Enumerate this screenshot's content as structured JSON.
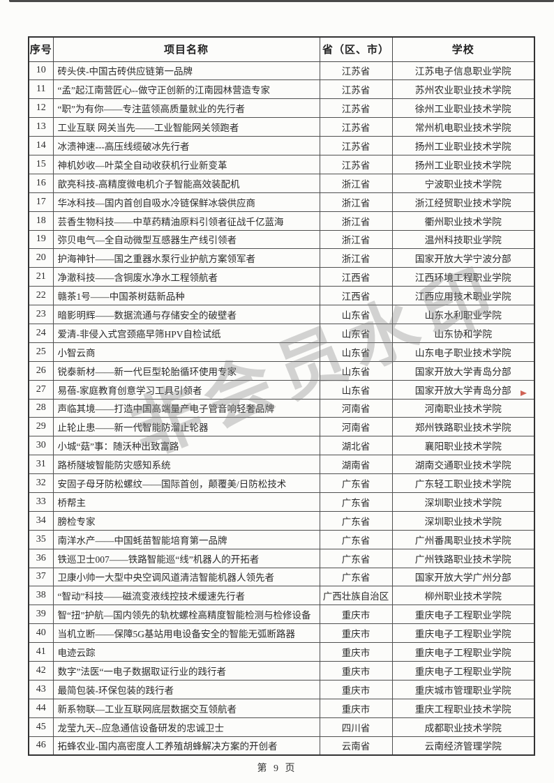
{
  "page": {
    "watermark": "非会员水印",
    "footer": "第 9 页"
  },
  "table": {
    "headers": [
      "序号",
      "项目名称",
      "省（区、市）",
      "学校"
    ],
    "rows": [
      {
        "no": "10",
        "project": "砖头侠-中国古砖供应链第一品牌",
        "province": "江苏省",
        "school": "江苏电子信息职业学院"
      },
      {
        "no": "11",
        "project": "“孟”起江南营匠心--做守正创新的江南园林营造专家",
        "province": "江苏省",
        "school": "苏州农业职业技术学院"
      },
      {
        "no": "12",
        "project": "“职”为有你——专注蓝领高质量就业的先行者",
        "province": "江苏省",
        "school": "徐州工业职业技术学院"
      },
      {
        "no": "13",
        "project": "工业互联 网关当先——工业智能网关领跑者",
        "province": "江苏省",
        "school": "常州机电职业技术学院"
      },
      {
        "no": "14",
        "project": "冰溃神速---高压线缆破冰先行者",
        "province": "江苏省",
        "school": "扬州工业职业技术学院"
      },
      {
        "no": "15",
        "project": "神机妙收—叶菜全自动收获机行业新变革",
        "province": "江苏省",
        "school": "扬州工业职业技术学院"
      },
      {
        "no": "16",
        "project": "歆亮科技-高精度微电机介子智能高效装配机",
        "province": "浙江省",
        "school": "宁波职业技术学院"
      },
      {
        "no": "17",
        "project": "华冰科技—国内首创自吸水冷链保鲜冰袋供应商",
        "province": "浙江省",
        "school": "浙江经贸职业技术学院"
      },
      {
        "no": "18",
        "project": "芸香生物科技——中草药精油原料引领者征战千亿蓝海",
        "province": "浙江省",
        "school": "衢州职业技术学院"
      },
      {
        "no": "19",
        "project": "弥贝电气—全自动微型互感器生产线引领者",
        "province": "浙江省",
        "school": "温州科技职业学院"
      },
      {
        "no": "20",
        "project": "护海神针——国之重器水泵行业护航方案领军者",
        "province": "浙江省",
        "school": "国家开放大学宁波分部"
      },
      {
        "no": "21",
        "project": "净澈科技——含铜废水净水工程领航者",
        "province": "江西省",
        "school": "江西环境工程职业学院"
      },
      {
        "no": "22",
        "project": "赣茶1号——中国茶树菇新品种",
        "province": "江西省",
        "school": "江西应用技术职业学院"
      },
      {
        "no": "23",
        "project": "暗影明辉——数据流通与存储安全的破壁者",
        "province": "山东省",
        "school": "山东水利职业学院"
      },
      {
        "no": "24",
        "project": "爱清-非侵入式宫颈癌早筛HPV自检试纸",
        "province": "山东省",
        "school": "山东协和学院"
      },
      {
        "no": "25",
        "project": "小智云商",
        "province": "山东省",
        "school": "山东电子职业技术学院"
      },
      {
        "no": "26",
        "project": "锐泰新材——新一代巨型轮胎循环使用专家",
        "province": "山东省",
        "school": "国家开放大学青岛分部"
      },
      {
        "no": "27",
        "project": "易蓓-家庭教育创意学习工具引领者",
        "province": "山东省",
        "school": "国家开放大学青岛分部"
      },
      {
        "no": "28",
        "project": "声临其境——打造中国高端量产电子管音响轻奢品牌",
        "province": "河南省",
        "school": "河南职业技术学院"
      },
      {
        "no": "29",
        "project": "止轮止患——新一代智能防溜止轮器",
        "province": "河南省",
        "school": "郑州铁路职业技术学院"
      },
      {
        "no": "30",
        "project": "小城“菇”事：随沃种出致富路",
        "province": "湖北省",
        "school": "襄阳职业技术学院"
      },
      {
        "no": "31",
        "project": "路桥隧坡智能防灾感知系统",
        "province": "湖南省",
        "school": "湖南交通职业技术学院"
      },
      {
        "no": "32",
        "project": "安固子母牙防松螺纹——国际首创，颠覆美/日防松技术",
        "province": "广东省",
        "school": "广东轻工职业技术学院"
      },
      {
        "no": "33",
        "project": "桥帮主",
        "province": "广东省",
        "school": "深圳职业技术学院"
      },
      {
        "no": "34",
        "project": "膀检专家",
        "province": "广东省",
        "school": "深圳职业技术学院"
      },
      {
        "no": "35",
        "project": "南洋水产——中国蚝苗智能培育第一品牌",
        "province": "广东省",
        "school": "广州番禺职业技术学院"
      },
      {
        "no": "36",
        "project": "铁巡卫士007——铁路智能巡“线”机器人的开拓者",
        "province": "广东省",
        "school": "广州铁路职业技术学院"
      },
      {
        "no": "37",
        "project": "卫康小帅一大型中央空调风道清洁智能机器人领先者",
        "province": "广东省",
        "school": "国家开放大学广州分部"
      },
      {
        "no": "38",
        "project": "“智动”科技——磁流变液线控技术缓速先行者",
        "province": "广西壮族自治区",
        "school": "柳州职业技术学院"
      },
      {
        "no": "39",
        "project": "智“扭”护航—国内领先的轨枕螺栓高精度智能检测与检修设备",
        "province": "重庆市",
        "school": "重庆电子工程职业学院"
      },
      {
        "no": "40",
        "project": "当机立断——保障5G基站用电设备安全的智能无弧断路器",
        "province": "重庆市",
        "school": "重庆电子工程职业学院"
      },
      {
        "no": "41",
        "project": "电迹云踪",
        "province": "重庆市",
        "school": "重庆电子工程职业学院"
      },
      {
        "no": "42",
        "project": "数字”法医“一电子数据取证行业的践行者",
        "province": "重庆市",
        "school": "重庆电子工程职业学院"
      },
      {
        "no": "43",
        "project": "最简包装-环保包装的践行者",
        "province": "重庆市",
        "school": "重庆城市管理职业学院"
      },
      {
        "no": "44",
        "project": "新系物联—工业互联网底层数据交互领航者",
        "province": "重庆市",
        "school": "重庆工程职业技术学院"
      },
      {
        "no": "45",
        "project": "龙莹九天--应急通信设备研发的忠诚卫士",
        "province": "四川省",
        "school": "成都职业技术学院"
      },
      {
        "no": "46",
        "project": "拓蜂农业-国内高密度人工养殖胡蜂解决方案的开创者",
        "province": "云南省",
        "school": "云南经济管理学院"
      }
    ]
  }
}
